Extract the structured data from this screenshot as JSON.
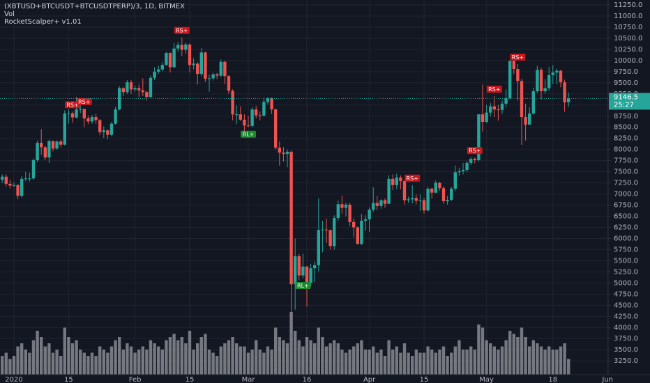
{
  "chart_data": {
    "type": "candlestick",
    "title": "(XBTUSD+BTCUSDT+BTCUSDTPERP)/3, 1D, BITMEX",
    "volume_title": "Vol",
    "indicator": "RocketScalper+ v1.01",
    "categories": [
      null,
      null,
      null,
      "2020",
      null,
      null,
      null,
      null,
      null,
      null,
      null,
      null,
      null,
      null,
      null,
      null,
      null,
      "15",
      null,
      null,
      null,
      null,
      null,
      null,
      null,
      null,
      null,
      null,
      null,
      null,
      null,
      null,
      null,
      null,
      "Feb",
      null,
      null,
      null,
      null,
      null,
      null,
      null,
      null,
      null,
      null,
      null,
      null,
      null,
      "15",
      null,
      null,
      null,
      null,
      null,
      null,
      null,
      null,
      null,
      null,
      null,
      null,
      null,
      null,
      "Mar",
      null,
      null,
      null,
      null,
      null,
      null,
      null,
      null,
      null,
      null,
      null,
      null,
      null,
      null,
      "16",
      null,
      null,
      null,
      null,
      null,
      null,
      null,
      null,
      null,
      null,
      null,
      null,
      null,
      null,
      null,
      "Apr",
      null,
      null,
      null,
      null,
      null,
      null,
      null,
      null,
      null,
      null,
      null,
      null,
      null,
      "15",
      null,
      null,
      null,
      null,
      null,
      null,
      null,
      null,
      null,
      null,
      null,
      null,
      null,
      null,
      null,
      "May",
      null,
      null,
      null,
      null,
      null,
      null,
      null,
      null,
      null,
      null,
      null,
      null,
      null,
      null,
      null,
      null,
      "18",
      null,
      null,
      null,
      null,
      null,
      null,
      null,
      null,
      null,
      null,
      null,
      null,
      null,
      "Jun"
    ],
    "open": [
      7320,
      7390,
      7230,
      7190,
      7200,
      6960,
      7340,
      7350,
      7350,
      7760,
      8150,
      8050,
      7820,
      8190,
      8020,
      8180,
      8110,
      8810,
      8810,
      8720,
      8900,
      8910,
      8700,
      8630,
      8730,
      8660,
      8390,
      8430,
      8330,
      8580,
      8900,
      9380,
      9290,
      9510,
      9350,
      9380,
      9330,
      9290,
      9180,
      9610,
      9750,
      9800,
      9900,
      10170,
      9850,
      10270,
      10350,
      10240,
      10360,
      9900,
      9930,
      9700,
      10180,
      9590,
      9600,
      9690,
      9660,
      9970,
      9650,
      9320,
      8790,
      8790,
      8670,
      8540,
      8530,
      8900,
      8770,
      8760,
      9070,
      9150,
      8900,
      8040,
      7930,
      7900,
      7950,
      4970,
      5600,
      5170,
      5370,
      5000,
      5330,
      5400,
      6190,
      6200,
      6190,
      5830,
      6460,
      6770,
      6690,
      6760,
      6370,
      6250,
      5880,
      6400,
      6430,
      6650,
      6800,
      6730,
      6860,
      6780,
      7340,
      7200,
      7370,
      7290,
      6860,
      6880,
      6910,
      6850,
      6860,
      6630,
      7120,
      7030,
      7250,
      7130,
      6840,
      6870,
      7120,
      7490,
      7510,
      7540,
      7700,
      7790,
      7760,
      8790,
      8620,
      8830,
      8970,
      8900,
      8890,
      9030,
      9150,
      9990,
      9810,
      9540,
      8730,
      8560,
      8810,
      9310,
      9790,
      9310,
      9380,
      9670,
      9730,
      9770,
      9510,
      9060,
      null,
      null,
      null,
      null,
      null,
      null,
      null,
      null,
      null,
      null
    ],
    "high": [
      7440,
      7440,
      7320,
      7260,
      7220,
      7400,
      7500,
      7480,
      7800,
      8200,
      8460,
      8080,
      8220,
      8200,
      8200,
      8220,
      8880,
      8900,
      8850,
      9180,
      9000,
      8920,
      8760,
      8780,
      8800,
      8680,
      8520,
      8450,
      8620,
      8960,
      9420,
      9400,
      9560,
      9560,
      9440,
      9460,
      9600,
      9320,
      9660,
      9850,
      9880,
      9960,
      10190,
      10180,
      10390,
      10420,
      10520,
      10400,
      10380,
      10050,
      9960,
      10280,
      10200,
      9680,
      9720,
      9720,
      10020,
      10000,
      9670,
      9350,
      8990,
      8970,
      8790,
      8750,
      8950,
      8980,
      8850,
      9170,
      9180,
      9170,
      8920,
      8180,
      8050,
      8000,
      7970,
      6000,
      5650,
      5660,
      5380,
      5430,
      5480,
      6900,
      6400,
      6450,
      6200,
      6520,
      6850,
      6960,
      6800,
      6800,
      6450,
      6270,
      6550,
      6520,
      6700,
      7150,
      6950,
      6880,
      6900,
      7420,
      7440,
      7460,
      7420,
      7300,
      6940,
      7200,
      6990,
      6990,
      6920,
      7160,
      7140,
      7300,
      7270,
      7180,
      6960,
      7160,
      7640,
      7590,
      7700,
      7740,
      7830,
      7820,
      8790,
      9460,
      9000,
      9050,
      9200,
      9000,
      9100,
      9350,
      10000,
      10050,
      9920,
      9590,
      9030,
      8950,
      9390,
      9880,
      9840,
      9580,
      9860,
      9900,
      9820,
      9790,
      9570,
      9280,
      null,
      null,
      null,
      null,
      null,
      null,
      null,
      null,
      null,
      null
    ],
    "low": [
      7250,
      7170,
      7130,
      7150,
      6880,
      6920,
      7290,
      7280,
      7320,
      7720,
      7880,
      7760,
      7700,
      7960,
      8000,
      8050,
      8090,
      8580,
      8600,
      8700,
      8820,
      8500,
      8570,
      8580,
      8580,
      8320,
      8260,
      8230,
      8300,
      8560,
      8880,
      9200,
      9250,
      9250,
      9300,
      9180,
      9200,
      9100,
      9160,
      9560,
      9700,
      9760,
      9880,
      9730,
      9830,
      10200,
      10100,
      10150,
      9730,
      9800,
      9460,
      9650,
      9520,
      9300,
      9550,
      9580,
      9630,
      9470,
      9250,
      8660,
      8570,
      8640,
      8400,
      8500,
      8500,
      8700,
      8660,
      8740,
      9010,
      8800,
      8000,
      7640,
      7730,
      7600,
      3850,
      4400,
      5060,
      5100,
      4470,
      4920,
      5020,
      5260,
      5690,
      5900,
      5750,
      5750,
      6400,
      6560,
      6500,
      6280,
      6030,
      5860,
      5850,
      6180,
      6150,
      6600,
      6640,
      6670,
      6690,
      6770,
      7090,
      7110,
      7110,
      6760,
      6800,
      6790,
      6770,
      6620,
      6560,
      6610,
      6900,
      7020,
      7070,
      6780,
      6760,
      6840,
      7070,
      7410,
      7440,
      7490,
      7650,
      7690,
      7730,
      8400,
      8600,
      8740,
      8730,
      8650,
      8800,
      8950,
      9120,
      9700,
      9100,
      8100,
      8200,
      8550,
      8780,
      9270,
      9120,
      9260,
      9320,
      9470,
      9470,
      9400,
      8850,
      8960,
      null,
      null,
      null,
      null,
      null,
      null,
      null,
      null,
      null,
      null
    ],
    "close": [
      7390,
      7230,
      7190,
      7200,
      6960,
      7340,
      7350,
      7350,
      7760,
      8150,
      8050,
      7820,
      8190,
      8020,
      8180,
      8110,
      8810,
      8810,
      8720,
      8900,
      8910,
      8700,
      8630,
      8730,
      8660,
      8390,
      8430,
      8330,
      8580,
      8900,
      9380,
      9290,
      9510,
      9350,
      9380,
      9330,
      9290,
      9180,
      9610,
      9750,
      9800,
      9900,
      10170,
      9850,
      10270,
      10350,
      10240,
      10360,
      9900,
      9930,
      9700,
      10180,
      9590,
      9600,
      9690,
      9660,
      9970,
      9650,
      9320,
      8790,
      8790,
      8670,
      8540,
      8530,
      8900,
      8770,
      8760,
      9070,
      9150,
      8900,
      8040,
      7930,
      7900,
      7950,
      4970,
      5600,
      5170,
      5370,
      5000,
      5330,
      5400,
      6190,
      6200,
      6190,
      5830,
      6460,
      6770,
      6690,
      6760,
      6370,
      6250,
      5880,
      6400,
      6430,
      6650,
      6800,
      6730,
      6860,
      6780,
      7340,
      7200,
      7370,
      7290,
      6860,
      6880,
      6910,
      6850,
      6860,
      6630,
      7120,
      7030,
      7250,
      7130,
      6840,
      6870,
      7120,
      7490,
      7510,
      7540,
      7700,
      7790,
      7760,
      8790,
      8620,
      8830,
      8970,
      8900,
      8890,
      9030,
      9150,
      9990,
      9810,
      9540,
      8730,
      8560,
      8810,
      9310,
      9790,
      9310,
      9380,
      9670,
      9730,
      9770,
      9510,
      9060,
      9146.5,
      null,
      null,
      null,
      null,
      null,
      null,
      null,
      null,
      null,
      null
    ],
    "volume": [
      30,
      35,
      25,
      30,
      45,
      50,
      40,
      35,
      55,
      70,
      60,
      45,
      50,
      35,
      40,
      30,
      75,
      60,
      50,
      55,
      40,
      35,
      30,
      35,
      30,
      45,
      40,
      35,
      45,
      55,
      60,
      40,
      50,
      45,
      35,
      40,
      45,
      40,
      55,
      50,
      45,
      40,
      55,
      60,
      65,
      55,
      60,
      50,
      70,
      40,
      50,
      60,
      65,
      40,
      35,
      30,
      45,
      50,
      55,
      60,
      50,
      45,
      45,
      35,
      40,
      55,
      40,
      35,
      45,
      40,
      75,
      60,
      55,
      50,
      100,
      70,
      55,
      45,
      60,
      55,
      50,
      75,
      60,
      45,
      50,
      55,
      50,
      40,
      35,
      40,
      45,
      50,
      55,
      40,
      40,
      45,
      35,
      40,
      30,
      55,
      40,
      45,
      35,
      50,
      35,
      30,
      40,
      35,
      35,
      45,
      40,
      35,
      40,
      45,
      30,
      35,
      45,
      55,
      40,
      40,
      45,
      40,
      80,
      75,
      55,
      50,
      45,
      40,
      45,
      55,
      70,
      65,
      60,
      75,
      60,
      45,
      55,
      50,
      45,
      40,
      45,
      40,
      40,
      45,
      50,
      25,
      null,
      null,
      null,
      null,
      null,
      null,
      null,
      null,
      null,
      null
    ],
    "vol_lim": [
      0,
      100
    ],
    "signals": [
      null,
      null,
      null,
      null,
      null,
      null,
      null,
      null,
      null,
      null,
      null,
      null,
      null,
      null,
      null,
      null,
      null,
      null,
      {
        "label": "RS+",
        "side": "above",
        "color": "#c8161d"
      },
      null,
      null,
      {
        "label": "RS+",
        "side": "above",
        "color": "#c8161d"
      },
      null,
      null,
      null,
      null,
      null,
      null,
      null,
      null,
      null,
      null,
      null,
      null,
      null,
      null,
      null,
      null,
      null,
      null,
      null,
      null,
      null,
      null,
      null,
      null,
      {
        "label": "RS+",
        "side": "above",
        "color": "#c8161d"
      },
      null,
      null,
      null,
      null,
      null,
      null,
      null,
      null,
      null,
      null,
      null,
      null,
      null,
      null,
      null,
      null,
      {
        "label": "RL+",
        "side": "below",
        "color": "#1b8a2e"
      },
      null,
      null,
      null,
      null,
      null,
      null,
      null,
      null,
      null,
      null,
      null,
      null,
      null,
      {
        "label": "RL+",
        "side": "below",
        "color": "#1b8a2e"
      },
      null,
      null,
      null,
      null,
      null,
      null,
      null,
      null,
      null,
      null,
      null,
      null,
      null,
      null,
      null,
      null,
      null,
      null,
      null,
      null,
      null,
      null,
      null,
      null,
      null,
      null,
      null,
      {
        "label": "RS+",
        "side": "above",
        "color": "#c8161d"
      },
      null,
      null,
      null,
      null,
      null,
      null,
      null,
      null,
      null,
      null,
      null,
      null,
      null,
      null,
      null,
      {
        "label": "RS+",
        "side": "above",
        "color": "#c8161d"
      },
      null,
      null,
      null,
      null,
      {
        "label": "RS+",
        "side": "above",
        "color": "#c8161d"
      },
      null,
      null,
      null,
      null,
      null,
      {
        "label": "RS+",
        "side": "above",
        "color": "#c8161d"
      },
      null,
      null,
      null,
      null,
      null,
      null,
      null,
      null,
      null,
      null,
      null,
      null,
      null,
      null,
      null,
      null,
      null,
      null,
      null,
      null,
      null,
      null,
      null
    ],
    "up_color": "#26a69a",
    "down_color": "#ef5350",
    "volume_color": "rgba(200,200,205,0.55)",
    "last_price": 9146.5,
    "countdown": "25:27",
    "ylim": [
      2940,
      11360
    ],
    "yticks": [
      {
        "value": 3250,
        "label": "3250.0"
      },
      {
        "value": 3500,
        "label": "3500.0"
      },
      {
        "value": 3750,
        "label": "3750.0"
      },
      {
        "value": 4000,
        "label": "4000.0"
      },
      {
        "value": 4250,
        "label": "4250.0"
      },
      {
        "value": 4500,
        "label": "4500.0"
      },
      {
        "value": 4750,
        "label": "4750.0"
      },
      {
        "value": 5000,
        "label": "5000.0"
      },
      {
        "value": 5250,
        "label": "5250.0"
      },
      {
        "value": 5500,
        "label": "5500.0"
      },
      {
        "value": 5750,
        "label": "5750.0"
      },
      {
        "value": 6000,
        "label": "6000.0"
      },
      {
        "value": 6250,
        "label": "6250.0"
      },
      {
        "value": 6500,
        "label": "6500.0"
      },
      {
        "value": 6750,
        "label": "6750.0"
      },
      {
        "value": 7000,
        "label": "7000.0"
      },
      {
        "value": 7250,
        "label": "7250.0"
      },
      {
        "value": 7500,
        "label": "7500.0"
      },
      {
        "value": 7750,
        "label": "7750.0"
      },
      {
        "value": 8000,
        "label": "8000.0"
      },
      {
        "value": 8250,
        "label": "8250.0"
      },
      {
        "value": 8500,
        "label": "8500.0"
      },
      {
        "value": 8750,
        "label": "8750.0"
      },
      {
        "value": 9000,
        "label": "9000.0"
      },
      {
        "value": 9250,
        "label": "9250.0"
      },
      {
        "value": 9500,
        "label": "9500.0"
      },
      {
        "value": 9750,
        "label": "9750.0"
      },
      {
        "value": 10000,
        "label": "10000.0"
      },
      {
        "value": 10250,
        "label": "10250.0"
      },
      {
        "value": 10500,
        "label": "10500.0"
      },
      {
        "value": 10750,
        "label": "10750.0"
      },
      {
        "value": 11000,
        "label": "11000.0"
      },
      {
        "value": 11250,
        "label": "11250.0"
      }
    ],
    "grid": true
  }
}
